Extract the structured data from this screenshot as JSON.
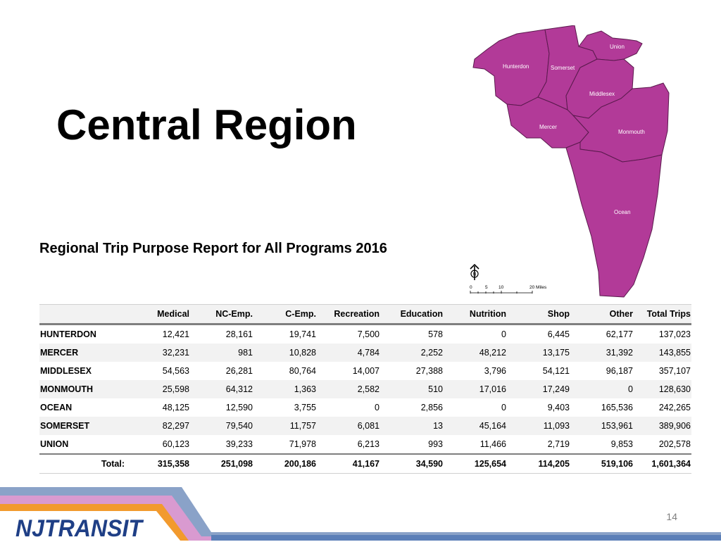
{
  "slide": {
    "title": "Central Region",
    "subtitle": "Regional Trip Purpose Report for All Programs 2016",
    "page_number": "14"
  },
  "map": {
    "counties": [
      "Hunterdon",
      "Somerset",
      "Union",
      "Middlesex",
      "Mercer",
      "Monmouth",
      "Ocean"
    ],
    "north_arrow_label": "N",
    "scale_ticks": [
      "0",
      "5",
      "10",
      "20 Miles"
    ],
    "fill_color": "#b23a98"
  },
  "table": {
    "headers": [
      "",
      "Medical",
      "NC-Emp.",
      "C-Emp.",
      "Recreation",
      "Education",
      "Nutrition",
      "Shop",
      "Other",
      "Total Trips"
    ],
    "rows": [
      [
        "HUNTERDON",
        "12,421",
        "28,161",
        "19,741",
        "7,500",
        "578",
        "0",
        "6,445",
        "62,177",
        "137,023"
      ],
      [
        "MERCER",
        "32,231",
        "981",
        "10,828",
        "4,784",
        "2,252",
        "48,212",
        "13,175",
        "31,392",
        "143,855"
      ],
      [
        "MIDDLESEX",
        "54,563",
        "26,281",
        "80,764",
        "14,007",
        "27,388",
        "3,796",
        "54,121",
        "96,187",
        "357,107"
      ],
      [
        "MONMOUTH",
        "25,598",
        "64,312",
        "1,363",
        "2,582",
        "510",
        "17,016",
        "17,249",
        "0",
        "128,630"
      ],
      [
        "OCEAN",
        "48,125",
        "12,590",
        "3,755",
        "0",
        "2,856",
        "0",
        "9,403",
        "165,536",
        "242,265"
      ],
      [
        "SOMERSET",
        "82,297",
        "79,540",
        "11,757",
        "6,081",
        "13",
        "45,164",
        "11,093",
        "153,961",
        "389,906"
      ],
      [
        "UNION",
        "60,123",
        "39,233",
        "71,978",
        "6,213",
        "993",
        "11,466",
        "2,719",
        "9,853",
        "202,578"
      ]
    ],
    "total": [
      "Total:",
      "315,358",
      "251,098",
      "200,186",
      "41,167",
      "34,590",
      "125,654",
      "114,205",
      "519,106",
      "1,601,364"
    ]
  },
  "footer": {
    "logo_text": "NJTRANSIT",
    "stripe_colors": [
      "#8aa2c8",
      "#d99ad0",
      "#f29a2e",
      "#5b7fb8"
    ]
  }
}
